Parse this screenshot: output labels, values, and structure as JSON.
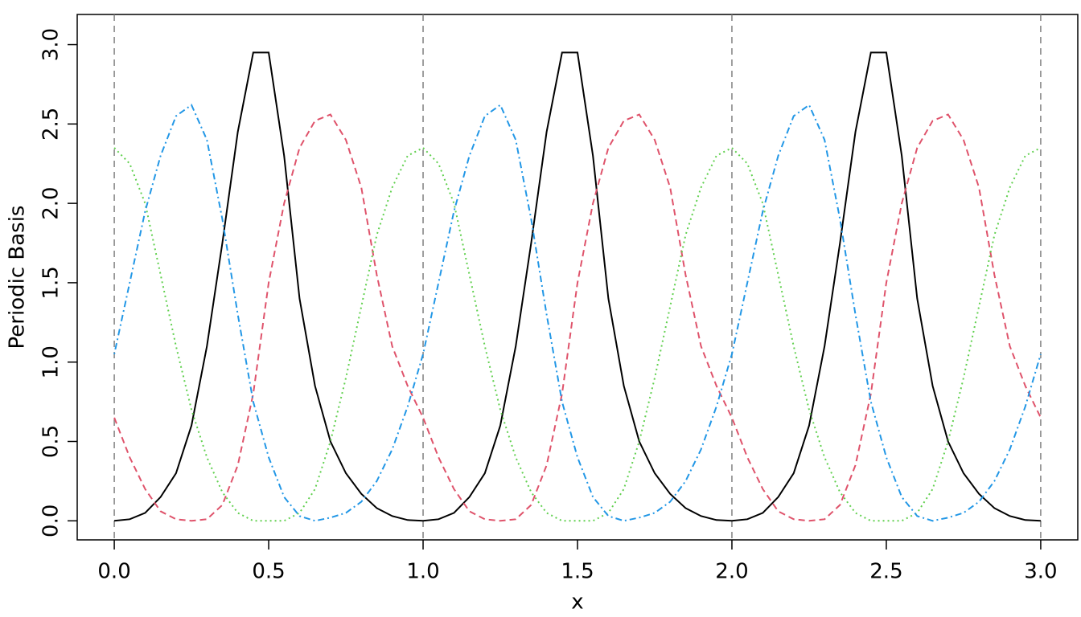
{
  "chart_data": {
    "type": "line",
    "x_label": "x",
    "y_label": "Periodic Basis",
    "x": [
      0,
      0.05,
      0.1,
      0.15,
      0.2,
      0.25,
      0.3,
      0.35,
      0.4,
      0.45,
      0.5,
      0.55,
      0.6,
      0.65,
      0.7,
      0.75,
      0.8,
      0.85,
      0.9,
      0.95,
      1,
      1.05,
      1.1,
      1.15,
      1.2,
      1.25,
      1.3,
      1.35,
      1.4,
      1.45,
      1.5,
      1.55,
      1.6,
      1.65,
      1.7,
      1.75,
      1.8,
      1.85,
      1.9,
      1.95,
      2,
      2.05,
      2.1,
      2.15,
      2.2,
      2.25,
      2.3,
      2.35,
      2.4,
      2.45,
      2.5,
      2.55,
      2.6,
      2.65,
      2.7,
      2.75,
      2.8,
      2.85,
      2.9,
      2.95,
      3
    ],
    "series": [
      {
        "color": "#000000",
        "linetype": "solid",
        "values": [
          0,
          0.01,
          0.05,
          0.15,
          0.3,
          0.6,
          1.1,
          1.75,
          2.45,
          2.95,
          2.95,
          2.3,
          1.4,
          0.85,
          0.5,
          0.3,
          0.17,
          0.08,
          0.03,
          0.005,
          0,
          0.01,
          0.05,
          0.15,
          0.3,
          0.6,
          1.1,
          1.75,
          2.45,
          2.95,
          2.95,
          2.3,
          1.4,
          0.85,
          0.5,
          0.3,
          0.17,
          0.08,
          0.03,
          0.005,
          0,
          0.01,
          0.05,
          0.15,
          0.3,
          0.6,
          1.1,
          1.75,
          2.45,
          2.95,
          2.95,
          2.3,
          1.4,
          0.85,
          0.5,
          0.3,
          0.17,
          0.08,
          0.03,
          0.005,
          0
        ]
      },
      {
        "color": "#df536b",
        "linetype": "dashed",
        "values": [
          0.65,
          0.4,
          0.2,
          0.06,
          0.01,
          0,
          0.01,
          0.1,
          0.35,
          0.8,
          1.5,
          2.0,
          2.35,
          2.52,
          2.56,
          2.4,
          2.1,
          1.55,
          1.1,
          0.85,
          0.65,
          0.4,
          0.2,
          0.06,
          0.01,
          0,
          0.01,
          0.1,
          0.35,
          0.8,
          1.5,
          2.0,
          2.35,
          2.52,
          2.56,
          2.4,
          2.1,
          1.55,
          1.1,
          0.85,
          0.65,
          0.4,
          0.2,
          0.06,
          0.01,
          0,
          0.01,
          0.1,
          0.35,
          0.8,
          1.5,
          2.0,
          2.35,
          2.52,
          2.56,
          2.4,
          2.1,
          1.55,
          1.1,
          0.85,
          0.65
        ]
      },
      {
        "color": "#61d04f",
        "linetype": "dotted",
        "values": [
          2.35,
          2.25,
          2.0,
          1.55,
          1.1,
          0.7,
          0.4,
          0.18,
          0.05,
          0,
          0,
          0,
          0.05,
          0.2,
          0.5,
          0.9,
          1.35,
          1.8,
          2.1,
          2.3,
          2.35,
          2.25,
          2.0,
          1.55,
          1.1,
          0.7,
          0.4,
          0.18,
          0.05,
          0,
          0,
          0,
          0.05,
          0.2,
          0.5,
          0.9,
          1.35,
          1.8,
          2.1,
          2.3,
          2.35,
          2.25,
          2.0,
          1.55,
          1.1,
          0.7,
          0.4,
          0.18,
          0.05,
          0,
          0,
          0,
          0.05,
          0.2,
          0.5,
          0.9,
          1.35,
          1.8,
          2.1,
          2.3,
          2.35
        ]
      },
      {
        "color": "#2297e6",
        "linetype": "dotdash",
        "values": [
          1.05,
          1.5,
          1.95,
          2.3,
          2.55,
          2.62,
          2.4,
          1.9,
          1.3,
          0.75,
          0.4,
          0.15,
          0.03,
          0,
          0.02,
          0.05,
          0.12,
          0.25,
          0.45,
          0.72,
          1.05,
          1.5,
          1.95,
          2.3,
          2.55,
          2.62,
          2.4,
          1.9,
          1.3,
          0.75,
          0.4,
          0.15,
          0.03,
          0,
          0.02,
          0.05,
          0.12,
          0.25,
          0.45,
          0.72,
          1.05,
          1.5,
          1.95,
          2.3,
          2.55,
          2.62,
          2.4,
          1.9,
          1.3,
          0.75,
          0.4,
          0.15,
          0.03,
          0,
          0.02,
          0.05,
          0.12,
          0.25,
          0.45,
          0.72,
          1.05
        ]
      }
    ],
    "knots": [
      0,
      1,
      2,
      3
    ],
    "xlim": [
      -0.12,
      3.12
    ],
    "ylim": [
      -0.12,
      3.19
    ],
    "xticks": [
      {
        "value": 0,
        "label": "0.0"
      },
      {
        "value": 0.5,
        "label": "0.5"
      },
      {
        "value": 1,
        "label": "1.0"
      },
      {
        "value": 1.5,
        "label": "1.5"
      },
      {
        "value": 2,
        "label": "2.0"
      },
      {
        "value": 2.5,
        "label": "2.5"
      },
      {
        "value": 3,
        "label": "3.0"
      }
    ],
    "yticks": [
      {
        "value": 0,
        "label": "0.0"
      },
      {
        "value": 0.5,
        "label": "0.5"
      },
      {
        "value": 1,
        "label": "1.0"
      },
      {
        "value": 1.5,
        "label": "1.5"
      },
      {
        "value": 2,
        "label": "2.0"
      },
      {
        "value": 2.5,
        "label": "2.5"
      },
      {
        "value": 3,
        "label": "3.0"
      }
    ]
  }
}
